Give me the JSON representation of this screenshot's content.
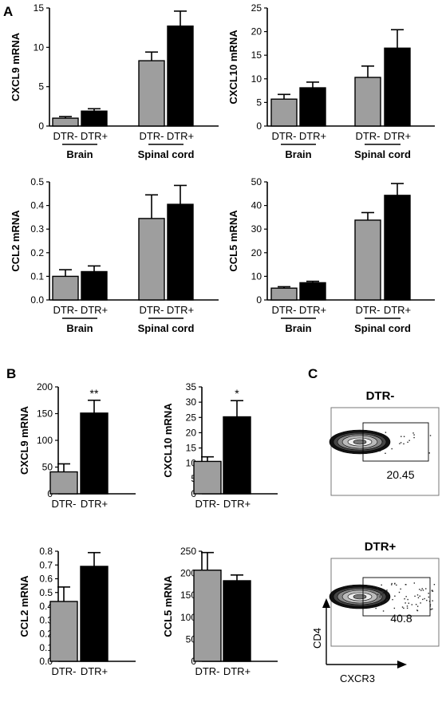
{
  "panel_labels": {
    "a": "A",
    "b": "B",
    "c": "C"
  },
  "colors": {
    "gray_bar": "#9e9e9e",
    "black_bar": "#000000"
  },
  "chart_data": [
    {
      "id": "a-cxcl9",
      "type": "bar",
      "ylabel": "CXCL9 mRNA",
      "ylim": [
        0,
        15
      ],
      "yticks": [
        0,
        5,
        10,
        15
      ],
      "categories": [
        "DTR-",
        "DTR+",
        "DTR-",
        "DTR+"
      ],
      "groups": [
        "Brain",
        "Spinal cord"
      ],
      "values": [
        1.0,
        1.9,
        8.3,
        12.7
      ],
      "errors": [
        0.2,
        0.3,
        1.1,
        1.9
      ]
    },
    {
      "id": "a-cxcl10",
      "type": "bar",
      "ylabel": "CXCL10 mRNA",
      "ylim": [
        0,
        25
      ],
      "yticks": [
        0,
        5,
        10,
        15,
        20,
        25
      ],
      "categories": [
        "DTR-",
        "DTR+",
        "DTR-",
        "DTR+"
      ],
      "groups": [
        "Brain",
        "Spinal cord"
      ],
      "values": [
        5.7,
        8.1,
        10.3,
        16.5
      ],
      "errors": [
        1.0,
        1.2,
        2.4,
        3.9
      ]
    },
    {
      "id": "a-ccl2",
      "type": "bar",
      "ylabel": "CCL2 mRNA",
      "ylim": [
        0,
        0.5
      ],
      "yticks": [
        0.0,
        0.1,
        0.2,
        0.3,
        0.4,
        0.5
      ],
      "categories": [
        "DTR-",
        "DTR+",
        "DTR-",
        "DTR+"
      ],
      "groups": [
        "Brain",
        "Spinal cord"
      ],
      "values": [
        0.1,
        0.12,
        0.345,
        0.405
      ],
      "errors": [
        0.028,
        0.024,
        0.1,
        0.08
      ]
    },
    {
      "id": "a-ccl5",
      "type": "bar",
      "ylabel": "CCL5 mRNA",
      "ylim": [
        0,
        50
      ],
      "yticks": [
        0,
        10,
        20,
        30,
        40,
        50
      ],
      "categories": [
        "DTR-",
        "DTR+",
        "DTR-",
        "DTR+"
      ],
      "groups": [
        "Brain",
        "Spinal cord"
      ],
      "values": [
        5.0,
        7.3,
        33.8,
        44.3
      ],
      "errors": [
        0.6,
        0.6,
        3.2,
        5.0
      ]
    },
    {
      "id": "b-cxcl9",
      "type": "bar",
      "ylabel": "CXCL9 mRNA",
      "ylim": [
        0,
        200
      ],
      "yticks": [
        0,
        50,
        100,
        150,
        200
      ],
      "categories": [
        "DTR-",
        "DTR+"
      ],
      "values": [
        41,
        151
      ],
      "errors": [
        15,
        24
      ],
      "annotations": [
        "",
        "**"
      ]
    },
    {
      "id": "b-cxcl10",
      "type": "bar",
      "ylabel": "CXCL10 mRNA",
      "ylim": [
        0,
        35
      ],
      "yticks": [
        0,
        5,
        10,
        15,
        20,
        25,
        30,
        35
      ],
      "categories": [
        "DTR-",
        "DTR+"
      ],
      "values": [
        10.6,
        25.2
      ],
      "errors": [
        1.5,
        5.3
      ],
      "annotations": [
        "",
        "*"
      ]
    },
    {
      "id": "b-ccl2",
      "type": "bar",
      "ylabel": "CCL2 mRNA",
      "ylim": [
        0,
        0.8
      ],
      "yticks": [
        0.0,
        0.1,
        0.2,
        0.3,
        0.4,
        0.5,
        0.6,
        0.7,
        0.8
      ],
      "categories": [
        "DTR-",
        "DTR+"
      ],
      "values": [
        0.435,
        0.69
      ],
      "errors": [
        0.105,
        0.1
      ]
    },
    {
      "id": "b-ccl5",
      "type": "bar",
      "ylabel": "CCL5 mRNA",
      "ylim": [
        0,
        250
      ],
      "yticks": [
        0,
        50,
        100,
        150,
        200,
        250
      ],
      "categories": [
        "DTR-",
        "DTR+"
      ],
      "values": [
        207,
        183
      ],
      "errors": [
        40,
        13
      ]
    }
  ],
  "flow": {
    "xlabel": "CXCR3",
    "ylabel": "CD4",
    "plots": [
      {
        "title": "DTR-",
        "gate_value": "20.45"
      },
      {
        "title": "DTR+",
        "gate_value": "40.8"
      }
    ]
  }
}
